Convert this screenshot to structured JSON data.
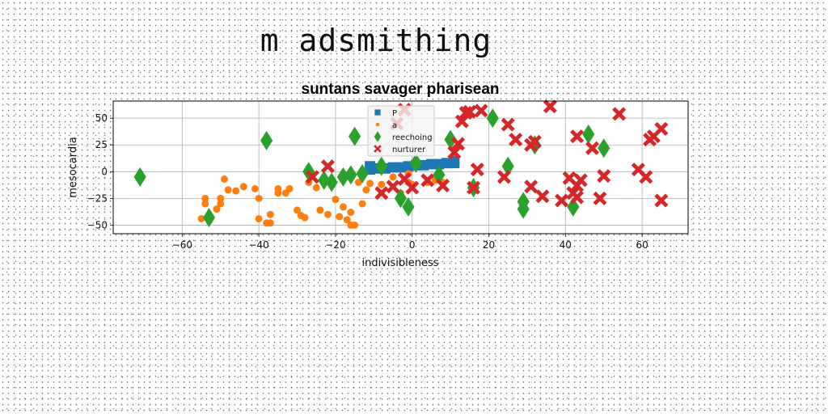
{
  "header": {
    "title": "m adsmithing"
  },
  "chart_data": {
    "type": "scatter",
    "title": "suntans savager pharisean",
    "xlabel": "indivisibleness",
    "ylabel": "mesocardia",
    "xlim": [
      -78,
      72
    ],
    "ylim": [
      -58,
      66
    ],
    "xticks": [
      -60,
      -40,
      -20,
      0,
      20,
      40,
      60
    ],
    "yticks": [
      -50,
      -25,
      0,
      25,
      50
    ],
    "grid": true,
    "legend_position": "top-center",
    "series": [
      {
        "name": "P",
        "marker": "square",
        "color": "#1f77b4",
        "points": [
          [
            -11,
            2
          ],
          [
            -9,
            3
          ],
          [
            -7,
            3
          ],
          [
            -5,
            4
          ],
          [
            -3,
            4
          ],
          [
            -1,
            5
          ],
          [
            1,
            6
          ],
          [
            3,
            6
          ],
          [
            5,
            7
          ],
          [
            7,
            7
          ],
          [
            9,
            8
          ],
          [
            11,
            8
          ],
          [
            11,
            10
          ],
          [
            -11,
            5
          ]
        ]
      },
      {
        "name": "a",
        "marker": "circle",
        "color": "#ff7f0e",
        "points": [
          [
            -55,
            -44
          ],
          [
            -54,
            -25
          ],
          [
            -54,
            -30
          ],
          [
            -53,
            -44
          ],
          [
            -51,
            -35
          ],
          [
            -50,
            -25
          ],
          [
            -50,
            -30
          ],
          [
            -49,
            -7
          ],
          [
            -48,
            -17
          ],
          [
            -46,
            -18
          ],
          [
            -44,
            -14
          ],
          [
            -41,
            -16
          ],
          [
            -40,
            -25
          ],
          [
            -40,
            -44
          ],
          [
            -38,
            -48
          ],
          [
            -37,
            -40
          ],
          [
            -37,
            -48
          ],
          [
            -35,
            -20
          ],
          [
            -35,
            -16
          ],
          [
            -33,
            -20
          ],
          [
            -32,
            -16
          ],
          [
            -30,
            -36
          ],
          [
            -29,
            -41
          ],
          [
            -28,
            -43
          ],
          [
            -27,
            -10
          ],
          [
            -25,
            -15
          ],
          [
            -24,
            -36
          ],
          [
            -22,
            -40
          ],
          [
            -20,
            -26
          ],
          [
            -19,
            -42
          ],
          [
            -18,
            -33
          ],
          [
            -17,
            -45
          ],
          [
            -16,
            -38
          ],
          [
            -16,
            -50
          ],
          [
            -15,
            -50
          ],
          [
            -14,
            -10
          ],
          [
            -13,
            -30
          ],
          [
            -12,
            -17
          ],
          [
            -11,
            -11
          ],
          [
            -8,
            -12
          ],
          [
            -5,
            -5
          ],
          [
            -3,
            -20
          ],
          [
            -1,
            -2
          ],
          [
            -1,
            -10
          ],
          [
            0,
            -12
          ],
          [
            4,
            -10
          ],
          [
            6,
            -8
          ],
          [
            8,
            -10
          ]
        ]
      },
      {
        "name": "reechoing",
        "marker": "diamond",
        "color": "#2ca02c",
        "points": [
          [
            -71,
            -5
          ],
          [
            -53,
            -43
          ],
          [
            -38,
            29
          ],
          [
            -27,
            0
          ],
          [
            -23,
            -8
          ],
          [
            -21,
            -10
          ],
          [
            -18,
            -5
          ],
          [
            -16,
            -3
          ],
          [
            -13,
            -2
          ],
          [
            -8,
            5
          ],
          [
            -3,
            -25
          ],
          [
            -1,
            -33
          ],
          [
            1,
            8
          ],
          [
            7,
            -3
          ],
          [
            10,
            30
          ],
          [
            16,
            -15
          ],
          [
            21,
            50
          ],
          [
            25,
            5
          ],
          [
            29,
            -28
          ],
          [
            29,
            -35
          ],
          [
            32,
            25
          ],
          [
            42,
            -33
          ],
          [
            46,
            35
          ],
          [
            50,
            22
          ],
          [
            -15,
            33
          ]
        ]
      },
      {
        "name": "nurturer",
        "marker": "x",
        "color": "#d62728",
        "points": [
          [
            -26,
            -5
          ],
          [
            -22,
            5
          ],
          [
            -8,
            -20
          ],
          [
            -5,
            -14
          ],
          [
            -4,
            45
          ],
          [
            -2,
            -7
          ],
          [
            -2,
            58
          ],
          [
            0,
            -15
          ],
          [
            4,
            -8
          ],
          [
            8,
            -13
          ],
          [
            11,
            18
          ],
          [
            12,
            26
          ],
          [
            13,
            47
          ],
          [
            14,
            55
          ],
          [
            15,
            56
          ],
          [
            16,
            -15
          ],
          [
            17,
            2
          ],
          [
            18,
            57
          ],
          [
            24,
            -5
          ],
          [
            25,
            44
          ],
          [
            27,
            30
          ],
          [
            31,
            25
          ],
          [
            31,
            -14
          ],
          [
            32,
            28
          ],
          [
            34,
            -23
          ],
          [
            36,
            61
          ],
          [
            39,
            -27
          ],
          [
            41,
            -6
          ],
          [
            42,
            -20
          ],
          [
            43,
            -13
          ],
          [
            43,
            -24
          ],
          [
            43,
            33
          ],
          [
            44,
            -8
          ],
          [
            47,
            22
          ],
          [
            49,
            -25
          ],
          [
            50,
            -4
          ],
          [
            54,
            54
          ],
          [
            59,
            2
          ],
          [
            61,
            -5
          ],
          [
            62,
            30
          ],
          [
            63,
            33
          ],
          [
            65,
            40
          ],
          [
            65,
            -27
          ]
        ]
      }
    ]
  }
}
